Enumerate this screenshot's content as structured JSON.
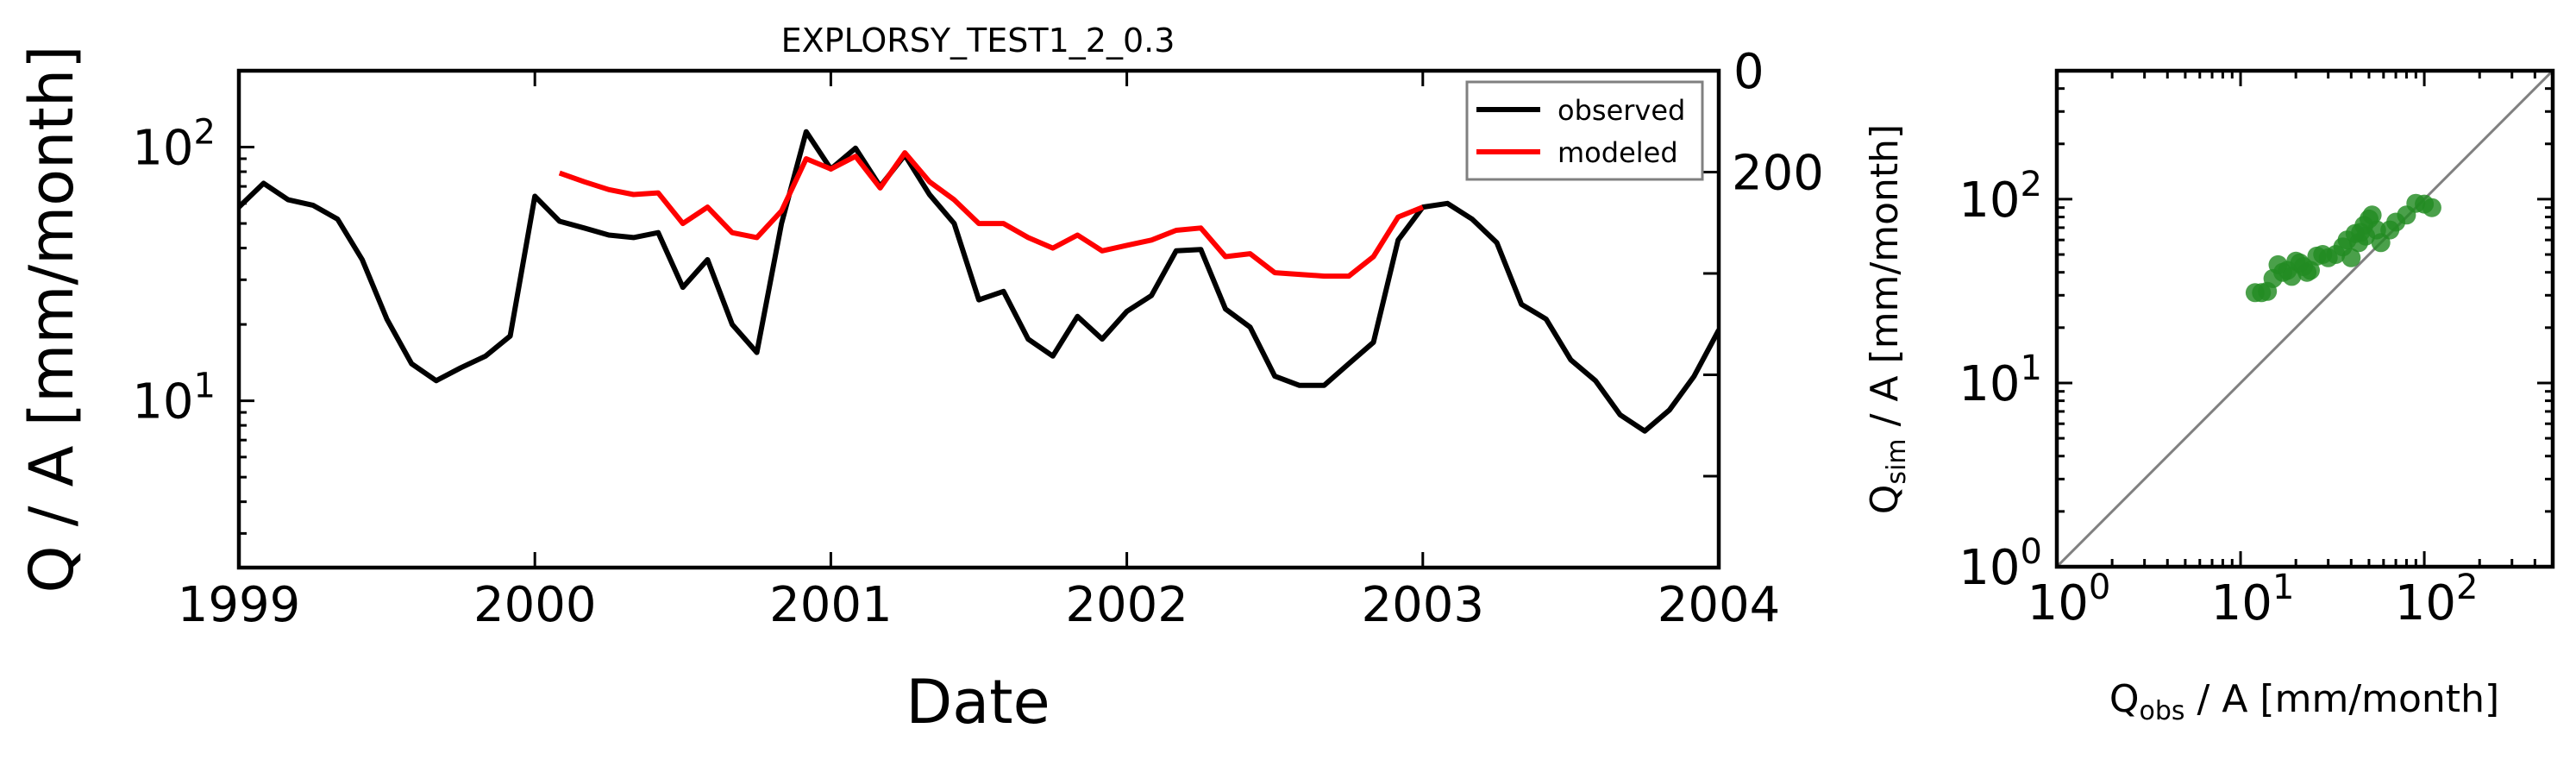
{
  "chart_data": [
    {
      "type": "line",
      "title": "EXPLORSY_TEST1_2_0.3",
      "xlabel": "Date",
      "ylabel": "Q / A [mm/month]",
      "x_ticks": [
        "1999",
        "2000",
        "2001",
        "2002",
        "2003",
        "2004"
      ],
      "xlim": [
        "1999-01",
        "2004-01"
      ],
      "yscale": "log",
      "ylim": [
        2.2,
        200
      ],
      "y_ticks": [
        {
          "base": "10",
          "exp": "1",
          "value": 10
        },
        {
          "base": "10",
          "exp": "2",
          "value": 100
        }
      ],
      "y2_ticks": [
        "0",
        "200"
      ],
      "y2_inverted": true,
      "legend_position": "upper-right",
      "grid": false,
      "series": [
        {
          "name": "observed",
          "color": "#000000",
          "start": "1999-01",
          "values": [
            58,
            72,
            62,
            59,
            52,
            36,
            21,
            14,
            12,
            13.5,
            15,
            18,
            64,
            51,
            48,
            45,
            44,
            46,
            28,
            36,
            20,
            15.5,
            50,
            115,
            82,
            99,
            70,
            93,
            65,
            50,
            25,
            27,
            17.5,
            15,
            21.5,
            17.5,
            22.5,
            26,
            39,
            39.5,
            23,
            19.5,
            12.5,
            11.5,
            11.5,
            14,
            17,
            43,
            58,
            60,
            52,
            42,
            24,
            21,
            14.5,
            12,
            8.8,
            7.6,
            9.2,
            12.5,
            19
          ]
        },
        {
          "name": "modeled",
          "color": "#ff0000",
          "start": "2000-02",
          "values": [
            79,
            73,
            68,
            65,
            66,
            50,
            58,
            46,
            44,
            56,
            90,
            82,
            92,
            69,
            95,
            73,
            62,
            50,
            50,
            44,
            40,
            45,
            39,
            41,
            43,
            47,
            48,
            37,
            38,
            32,
            31.5,
            31,
            31,
            37,
            53,
            58
          ]
        }
      ]
    },
    {
      "type": "scatter",
      "xlabel": {
        "main": "Q",
        "sub": "obs",
        "rest": " / A [mm/month]"
      },
      "ylabel": {
        "main": "Q",
        "sub": "sim",
        "rest": " / A [mm/month]"
      },
      "xscale": "log",
      "yscale": "log",
      "xlim": [
        1,
        500
      ],
      "ylim": [
        1,
        500
      ],
      "x_ticks": [
        {
          "base": "10",
          "exp": "0",
          "value": 1
        },
        {
          "base": "10",
          "exp": "1",
          "value": 10
        },
        {
          "base": "10",
          "exp": "2",
          "value": 100
        }
      ],
      "y_ticks": [
        {
          "base": "10",
          "exp": "0",
          "value": 1
        },
        {
          "base": "10",
          "exp": "1",
          "value": 10
        },
        {
          "base": "10",
          "exp": "2",
          "value": 100
        }
      ],
      "one_to_one_line": true,
      "line_color": "#808080",
      "point_color": "#228b22",
      "points": [
        [
          12,
          31
        ],
        [
          13,
          31
        ],
        [
          14,
          31.5
        ],
        [
          15,
          37
        ],
        [
          16,
          44
        ],
        [
          17,
          40
        ],
        [
          18,
          41
        ],
        [
          19,
          38
        ],
        [
          20,
          46
        ],
        [
          21,
          45
        ],
        [
          22,
          43
        ],
        [
          23,
          40
        ],
        [
          24,
          41
        ],
        [
          26,
          49
        ],
        [
          28,
          50
        ],
        [
          30,
          48
        ],
        [
          33,
          50
        ],
        [
          36,
          55
        ],
        [
          38,
          60
        ],
        [
          40,
          48
        ],
        [
          42,
          65
        ],
        [
          44,
          58
        ],
        [
          45,
          66
        ],
        [
          47,
          72
        ],
        [
          48,
          63
        ],
        [
          50,
          78
        ],
        [
          52,
          82
        ],
        [
          55,
          68
        ],
        [
          58,
          58
        ],
        [
          65,
          68
        ],
        [
          70,
          75
        ],
        [
          80,
          82
        ],
        [
          90,
          95
        ],
        [
          100,
          94
        ],
        [
          110,
          90
        ]
      ]
    }
  ]
}
